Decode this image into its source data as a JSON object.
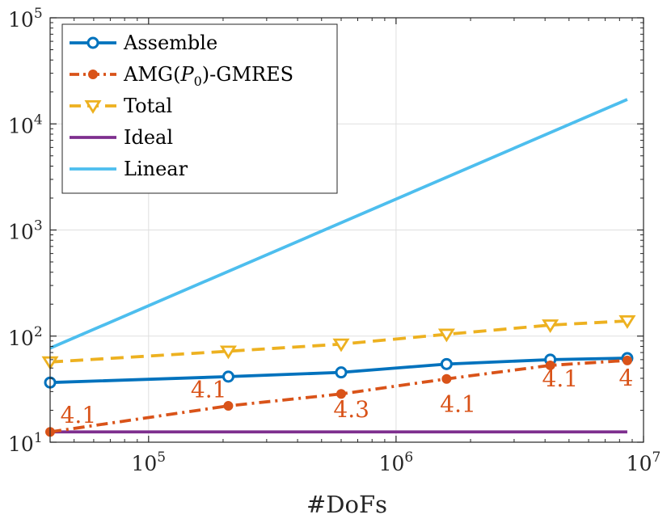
{
  "chart_data": {
    "type": "line",
    "xlabel": "#DoFs",
    "x_scale": "log",
    "y_scale": "log",
    "xlim": [
      40000,
      10000000
    ],
    "ylim": [
      10,
      100000
    ],
    "grid": true,
    "legend_placement": "top-left",
    "x_ticks": [
      {
        "value": 100000,
        "base": "10",
        "exp": "5"
      },
      {
        "value": 1000000,
        "base": "10",
        "exp": "6"
      },
      {
        "value": 10000000,
        "base": "10",
        "exp": "7"
      }
    ],
    "y_ticks": [
      {
        "value": 10,
        "base": "10",
        "exp": "1"
      },
      {
        "value": 100,
        "base": "10",
        "exp": "2"
      },
      {
        "value": 1000,
        "base": "10",
        "exp": "3"
      },
      {
        "value": 10000,
        "base": "10",
        "exp": "4"
      },
      {
        "value": 100000,
        "base": "10",
        "exp": "5"
      }
    ],
    "series": [
      {
        "name": "Assemble",
        "color": "#0072BD",
        "marker": "circle",
        "dash": "solid",
        "x": [
          40000,
          210000,
          600000,
          1600000,
          4200000,
          8600000
        ],
        "y": [
          36.5,
          41.5,
          45.5,
          54.5,
          60,
          62
        ]
      },
      {
        "name": "AMG(P0)-GMRES",
        "legend_main": "AMG(",
        "legend_var": "P",
        "legend_sub": "0",
        "legend_tail": ")-GMRES",
        "color": "#D95319",
        "marker": "dot",
        "dash": "dashdot",
        "x": [
          40000,
          210000,
          600000,
          1600000,
          4200000,
          8600000
        ],
        "y": [
          12.5,
          22,
          28.5,
          39.5,
          53,
          59
        ]
      },
      {
        "name": "Total",
        "color": "#EDB120",
        "marker": "triangle-down",
        "dash": "dashed",
        "x": [
          40000,
          210000,
          600000,
          1600000,
          4200000,
          8600000
        ],
        "y": [
          57,
          72,
          84,
          104,
          127,
          139
        ]
      },
      {
        "name": "Ideal",
        "color": "#7E2F8E",
        "marker": "none",
        "dash": "solid",
        "x": [
          40000,
          8600000
        ],
        "y": [
          12.5,
          12.5
        ]
      },
      {
        "name": "Linear",
        "color": "#4DBEEE",
        "marker": "none",
        "dash": "solid",
        "x": [
          40000,
          8600000
        ],
        "y": [
          77,
          17000
        ]
      }
    ],
    "annotations": [
      {
        "text": "4.1",
        "x": 52000,
        "y": 15.2,
        "color": "#D95319"
      },
      {
        "text": "4.1",
        "x": 175000,
        "y": 26.5,
        "color": "#D95319"
      },
      {
        "text": "4.3",
        "x": 660000,
        "y": 17.3,
        "color": "#D95319"
      },
      {
        "text": "4.1",
        "x": 1780000,
        "y": 19.3,
        "color": "#D95319"
      },
      {
        "text": "4.1",
        "x": 4600000,
        "y": 33.5,
        "color": "#D95319"
      },
      {
        "text": "4",
        "x": 8500000,
        "y": 34.0,
        "color": "#D95319"
      }
    ]
  }
}
